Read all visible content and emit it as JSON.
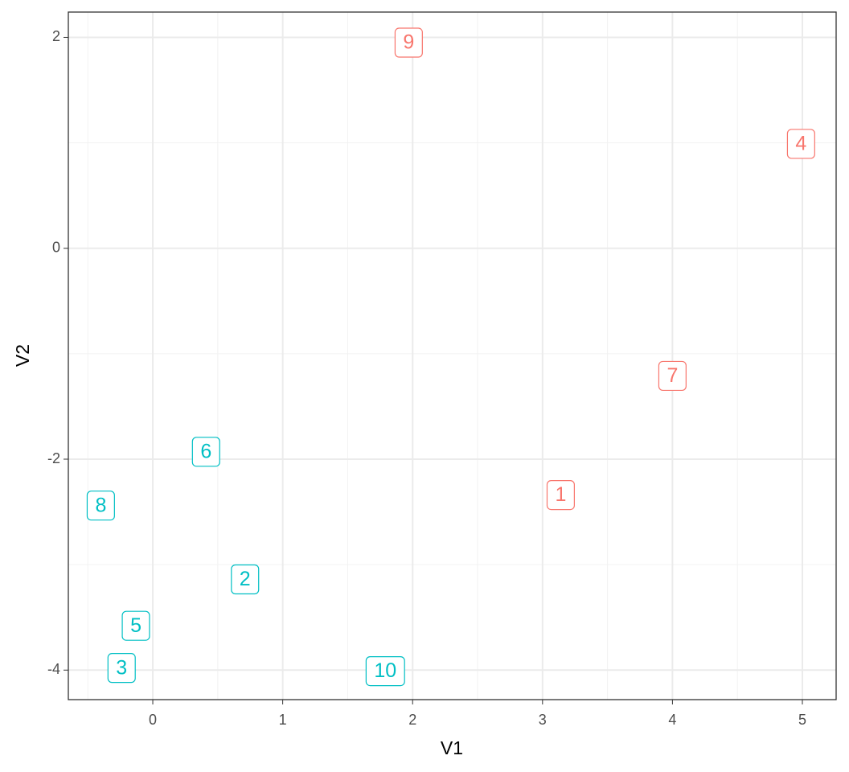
{
  "chart_data": {
    "type": "scatter",
    "x_label": "V1",
    "y_label": "V2",
    "xlim": [
      -0.65,
      5.26
    ],
    "ylim": [
      -4.28,
      2.24
    ],
    "xticks": [
      0,
      1,
      2,
      3,
      4,
      5
    ],
    "yticks": [
      -4,
      -2,
      0,
      2
    ],
    "xminorticks": [
      -0.5,
      0.5,
      1.5,
      2.5,
      3.5,
      4.5
    ],
    "yminorticks": [
      -3,
      -1,
      1
    ],
    "grid": true,
    "series": [
      {
        "color": "#F8766D",
        "labels": [
          "9",
          "4",
          "7",
          "1"
        ],
        "x": [
          1.97,
          4.99,
          4.0,
          3.14
        ],
        "values": [
          1.95,
          0.99,
          -1.21,
          -2.34
        ]
      },
      {
        "color": "#00BFC4",
        "labels": [
          "6",
          "8",
          "2",
          "5",
          "3",
          "10"
        ],
        "x": [
          0.41,
          -0.4,
          0.71,
          -0.13,
          -0.24,
          1.79
        ],
        "values": [
          -1.93,
          -2.44,
          -3.14,
          -3.58,
          -3.98,
          -4.01
        ]
      }
    ]
  }
}
